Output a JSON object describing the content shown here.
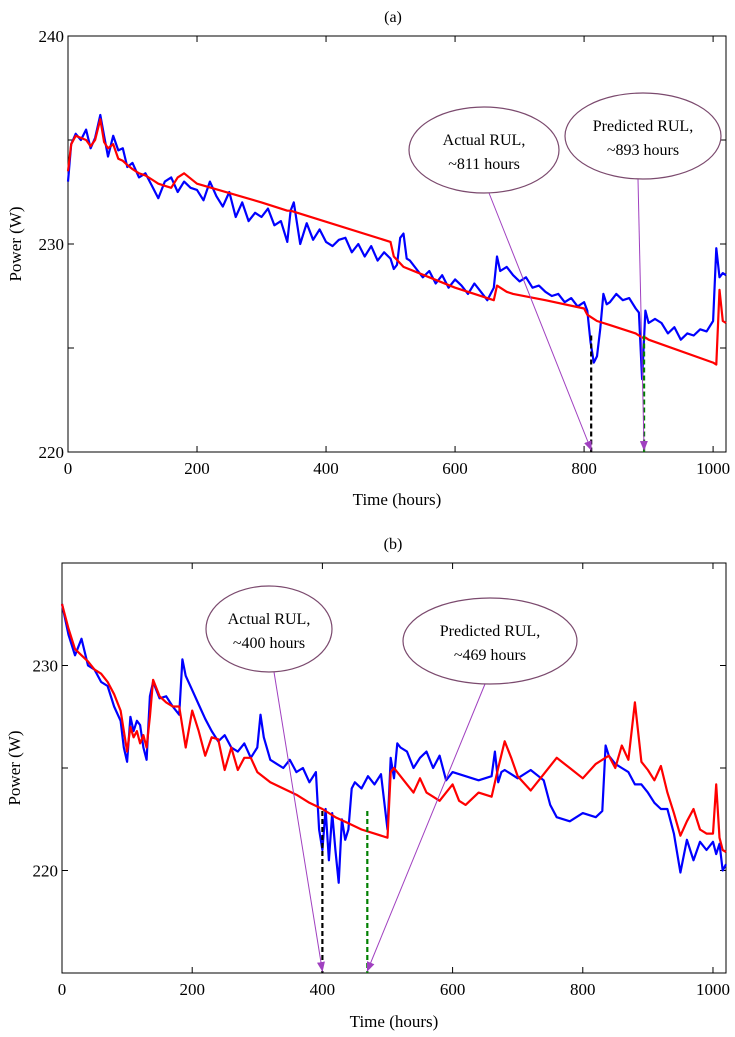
{
  "chart_data": [
    {
      "type": "line",
      "title": "(a)",
      "xlabel": "Time (hours)",
      "ylabel": "Power (W)",
      "xlim": [
        0,
        1020
      ],
      "ylim": [
        220,
        240
      ],
      "xticks": [
        0,
        200,
        400,
        600,
        800,
        1000
      ],
      "yticks": [
        220,
        230,
        240
      ],
      "grid": false,
      "colors": {
        "measured": "#0000ff",
        "predicted": "#ff0000",
        "actual_marker": "#000000",
        "predicted_marker": "#008000",
        "callout": "#7b4a6e",
        "arrow": "#a040c0"
      },
      "series": [
        {
          "color": "#0000ff",
          "x": [
            0,
            5,
            12,
            20,
            28,
            35,
            42,
            50,
            56,
            62,
            70,
            78,
            85,
            92,
            100,
            110,
            120,
            130,
            140,
            150,
            160,
            170,
            180,
            190,
            200,
            210,
            220,
            230,
            240,
            250,
            260,
            270,
            280,
            290,
            300,
            310,
            320,
            330,
            340,
            345,
            350,
            360,
            370,
            380,
            390,
            400,
            410,
            420,
            430,
            440,
            450,
            460,
            470,
            480,
            490,
            500,
            505,
            510,
            515,
            520,
            525,
            530,
            540,
            550,
            560,
            570,
            580,
            590,
            600,
            610,
            620,
            630,
            640,
            650,
            660,
            665,
            670,
            680,
            690,
            700,
            710,
            720,
            730,
            740,
            750,
            760,
            770,
            780,
            790,
            800,
            805,
            810,
            815,
            820,
            825,
            830,
            835,
            840,
            850,
            860,
            870,
            880,
            885,
            890,
            895,
            900,
            910,
            920,
            930,
            940,
            950,
            960,
            970,
            980,
            990,
            1000,
            1005,
            1010,
            1015,
            1020
          ],
          "y": [
            233.0,
            234.8,
            235.3,
            235.0,
            235.5,
            234.6,
            235.1,
            236.2,
            235.2,
            234.2,
            235.2,
            234.5,
            234.6,
            233.7,
            233.9,
            233.2,
            233.4,
            232.8,
            232.2,
            233.0,
            233.2,
            232.5,
            233.0,
            232.7,
            232.6,
            232.1,
            233.0,
            232.3,
            231.8,
            232.5,
            231.3,
            232.0,
            231.1,
            231.5,
            231.3,
            231.7,
            230.9,
            231.1,
            230.1,
            231.6,
            232.0,
            230.0,
            231.0,
            230.2,
            230.7,
            230.1,
            229.9,
            230.2,
            230.3,
            229.6,
            230.0,
            229.4,
            229.9,
            229.2,
            229.6,
            229.3,
            228.8,
            229.0,
            230.3,
            230.5,
            229.3,
            229.2,
            228.8,
            228.4,
            228.7,
            228.1,
            228.5,
            227.9,
            228.3,
            228.0,
            227.6,
            228.1,
            227.7,
            227.3,
            227.9,
            229.4,
            228.7,
            228.9,
            228.5,
            228.2,
            228.4,
            227.9,
            228.0,
            227.7,
            227.5,
            227.6,
            227.2,
            227.4,
            227.0,
            227.2,
            226.8,
            225.3,
            224.3,
            224.6,
            225.9,
            227.6,
            227.1,
            227.2,
            227.6,
            227.3,
            227.4,
            226.9,
            226.7,
            223.5,
            226.8,
            226.2,
            226.4,
            226.2,
            225.7,
            226.0,
            225.4,
            225.7,
            225.6,
            225.9,
            225.8,
            226.3,
            229.8,
            228.4,
            228.6,
            228.5
          ]
        },
        {
          "color": "#ff0000",
          "x": [
            0,
            5,
            12,
            20,
            28,
            35,
            42,
            50,
            56,
            62,
            70,
            78,
            85,
            92,
            100,
            110,
            120,
            130,
            140,
            150,
            160,
            170,
            180,
            200,
            300,
            340,
            345,
            500,
            505,
            520,
            560,
            600,
            660,
            665,
            680,
            690,
            740,
            800,
            805,
            810,
            815,
            820,
            840,
            880,
            885,
            890,
            895,
            900,
            1000,
            1005,
            1010,
            1015,
            1020
          ],
          "y": [
            233.5,
            234.8,
            235.2,
            235.1,
            235.0,
            234.7,
            235.0,
            236.0,
            234.9,
            234.6,
            234.8,
            234.1,
            234.0,
            233.8,
            233.6,
            233.4,
            233.3,
            233.1,
            232.9,
            232.8,
            232.7,
            233.2,
            233.4,
            232.9,
            232.0,
            231.6,
            231.6,
            230.1,
            229.4,
            228.9,
            228.4,
            227.9,
            227.3,
            228.0,
            227.7,
            227.6,
            227.3,
            226.9,
            226.6,
            226.5,
            226.4,
            226.3,
            226.1,
            225.7,
            225.6,
            225.5,
            225.5,
            225.4,
            224.3,
            224.2,
            227.8,
            226.3,
            226.2
          ]
        }
      ],
      "markers": [
        {
          "x": 811,
          "ymax": 225.6,
          "color": "#000000"
        },
        {
          "x": 893,
          "ymax": 225.6,
          "color": "#008000"
        }
      ],
      "annotations": [
        {
          "lines": [
            "Actual RUL,",
            "~811 hours"
          ],
          "target_x": 811
        },
        {
          "lines": [
            "Predicted RUL,",
            "~893 hours"
          ],
          "target_x": 893
        }
      ]
    },
    {
      "type": "line",
      "title": "(b)",
      "xlabel": "Time (hours)",
      "ylabel": "Power (W)",
      "xlim": [
        0,
        1020
      ],
      "ylim": [
        215,
        235
      ],
      "xticks": [
        0,
        200,
        400,
        600,
        800,
        1000
      ],
      "yticks": [
        220,
        230
      ],
      "grid": false,
      "colors": {
        "measured": "#0000ff",
        "predicted": "#ff0000",
        "actual_marker": "#000000",
        "predicted_marker": "#008000",
        "callout": "#7b4a6e",
        "arrow": "#a040c0"
      },
      "series": [
        {
          "color": "#0000ff",
          "x": [
            0,
            10,
            20,
            30,
            40,
            50,
            60,
            70,
            80,
            90,
            95,
            100,
            105,
            110,
            115,
            120,
            125,
            130,
            135,
            140,
            150,
            160,
            170,
            180,
            185,
            190,
            200,
            210,
            220,
            230,
            240,
            250,
            260,
            270,
            280,
            290,
            300,
            305,
            310,
            320,
            330,
            340,
            350,
            360,
            370,
            380,
            390,
            395,
            400,
            405,
            410,
            415,
            420,
            425,
            430,
            435,
            440,
            445,
            450,
            460,
            470,
            480,
            490,
            500,
            505,
            510,
            515,
            520,
            530,
            540,
            550,
            560,
            570,
            580,
            590,
            600,
            620,
            640,
            660,
            665,
            670,
            675,
            680,
            700,
            720,
            740,
            750,
            760,
            780,
            800,
            820,
            830,
            835,
            840,
            850,
            860,
            870,
            880,
            890,
            900,
            910,
            920,
            930,
            940,
            950,
            960,
            970,
            980,
            990,
            1000,
            1005,
            1010,
            1015,
            1020
          ],
          "y": [
            233.0,
            231.5,
            230.5,
            231.3,
            230.0,
            229.8,
            229.2,
            229.0,
            228.0,
            227.3,
            226.0,
            225.3,
            227.5,
            226.8,
            227.3,
            227.1,
            226.0,
            225.4,
            228.5,
            229.2,
            228.4,
            228.5,
            228.0,
            227.6,
            230.3,
            229.5,
            228.8,
            228.1,
            227.4,
            226.8,
            226.3,
            226.6,
            226.0,
            225.8,
            226.2,
            225.5,
            226.0,
            227.6,
            226.5,
            225.4,
            225.2,
            225.0,
            225.4,
            224.8,
            225.0,
            224.3,
            224.8,
            222.0,
            221.0,
            223.0,
            220.5,
            222.8,
            221.0,
            219.4,
            222.5,
            221.5,
            222.0,
            224.0,
            224.3,
            224.0,
            224.6,
            224.2,
            224.7,
            222.0,
            225.5,
            224.5,
            226.2,
            226.0,
            225.8,
            225.0,
            225.5,
            225.8,
            225.0,
            225.6,
            224.4,
            224.8,
            224.6,
            224.4,
            224.6,
            225.8,
            224.3,
            224.8,
            224.9,
            224.5,
            224.9,
            224.4,
            223.2,
            222.6,
            222.4,
            222.8,
            222.6,
            222.9,
            226.1,
            225.6,
            225.2,
            225.0,
            224.8,
            224.2,
            224.2,
            223.8,
            223.3,
            223.0,
            223.0,
            221.8,
            219.9,
            221.5,
            220.5,
            221.4,
            221.0,
            221.4,
            220.8,
            221.3,
            220.0,
            220.3
          ]
        },
        {
          "color": "#ff0000",
          "x": [
            0,
            10,
            20,
            30,
            40,
            50,
            60,
            70,
            80,
            90,
            100,
            105,
            110,
            115,
            120,
            125,
            130,
            135,
            140,
            150,
            160,
            170,
            180,
            190,
            200,
            210,
            220,
            230,
            240,
            250,
            260,
            270,
            280,
            290,
            300,
            320,
            340,
            360,
            380,
            400,
            420,
            440,
            460,
            480,
            500,
            505,
            510,
            520,
            530,
            540,
            550,
            560,
            570,
            580,
            590,
            600,
            610,
            620,
            640,
            660,
            670,
            680,
            690,
            700,
            720,
            740,
            760,
            780,
            800,
            820,
            840,
            850,
            860,
            870,
            880,
            890,
            900,
            910,
            920,
            930,
            940,
            950,
            960,
            970,
            980,
            990,
            1000,
            1005,
            1010,
            1015,
            1020
          ],
          "y": [
            233.0,
            231.8,
            230.8,
            230.5,
            230.2,
            229.8,
            229.6,
            229.2,
            228.6,
            227.8,
            225.8,
            227.0,
            226.5,
            226.8,
            226.2,
            226.6,
            226.0,
            227.5,
            229.3,
            228.5,
            228.2,
            228.0,
            228.0,
            226.0,
            227.8,
            226.8,
            225.6,
            226.5,
            226.4,
            224.9,
            226.0,
            224.9,
            225.5,
            225.5,
            224.8,
            224.3,
            224.0,
            223.7,
            223.3,
            223.0,
            222.6,
            222.3,
            222.0,
            221.8,
            221.6,
            224.8,
            225.0,
            224.6,
            224.2,
            223.8,
            224.5,
            223.8,
            223.6,
            223.4,
            223.8,
            224.2,
            223.4,
            223.2,
            223.8,
            223.6,
            225.0,
            226.3,
            225.5,
            224.6,
            223.9,
            224.7,
            225.5,
            225.0,
            224.5,
            225.2,
            225.6,
            225.0,
            226.1,
            225.4,
            228.2,
            225.3,
            224.9,
            224.4,
            225.1,
            223.8,
            222.8,
            221.7,
            222.4,
            223.0,
            222.0,
            221.8,
            221.8,
            224.2,
            221.6,
            221.0,
            220.9
          ]
        }
      ],
      "markers": [
        {
          "x": 400,
          "ymax": 222.9,
          "color": "#000000"
        },
        {
          "x": 469,
          "ymax": 222.9,
          "color": "#008000"
        }
      ],
      "annotations": [
        {
          "lines": [
            "Actual RUL,",
            "~400 hours"
          ],
          "target_x": 400
        },
        {
          "lines": [
            "Predicted RUL,",
            "~469 hours"
          ],
          "target_x": 469
        }
      ]
    }
  ]
}
